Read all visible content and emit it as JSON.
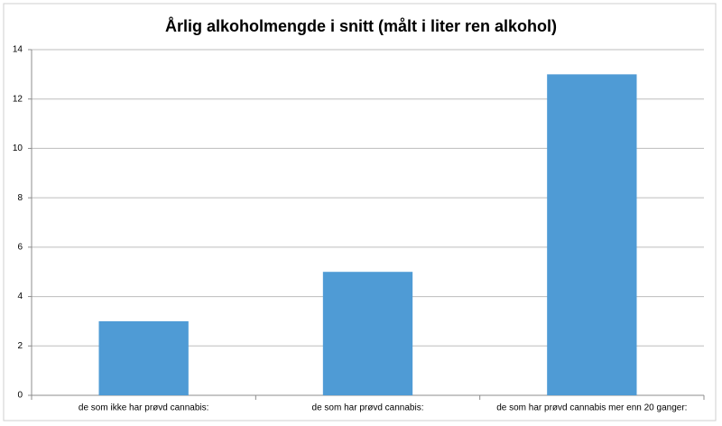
{
  "chart_data": {
    "type": "bar",
    "title": "Årlig alkoholmengde i snitt (målt i liter ren alkohol)",
    "categories": [
      "de som ikke har prøvd cannabis:",
      "de som har prøvd cannabis:",
      "de som har prøvd cannabis mer enn 20 ganger:"
    ],
    "values": [
      3,
      5,
      13
    ],
    "color": "#4f9bd5",
    "ylim": [
      0,
      14
    ],
    "yticks": [
      0,
      2,
      4,
      6,
      8,
      10,
      12,
      14
    ],
    "grid": true
  }
}
